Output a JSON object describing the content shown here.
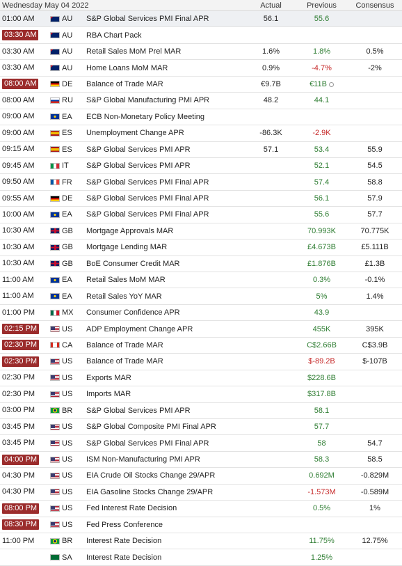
{
  "header": {
    "date": "Wednesday May 04 2022",
    "actual": "Actual",
    "previous": "Previous",
    "consensus": "Consensus"
  },
  "colors": {
    "highlight_time": "#9b2c2c",
    "positive": "#2e7d32",
    "negative": "#c62828"
  },
  "rows": [
    {
      "time": "01:00 AM",
      "hl": false,
      "flag": "australia-flag-icon",
      "ctry": "AU",
      "event": "S&P Global Services PMI Final APR",
      "actual": "56.1",
      "previous": "55.6",
      "prev_dir": "up",
      "consensus": ""
    },
    {
      "time": "03:30 AM",
      "hl": true,
      "flag": "australia-flag-icon",
      "ctry": "AU",
      "event": "RBA Chart Pack",
      "actual": "",
      "previous": "",
      "prev_dir": "",
      "consensus": ""
    },
    {
      "time": "03:30 AM",
      "hl": false,
      "flag": "australia-flag-icon",
      "ctry": "AU",
      "event": "Retail Sales MoM Prel MAR",
      "actual": "1.6%",
      "previous": "1.8%",
      "prev_dir": "up",
      "consensus": "0.5%"
    },
    {
      "time": "03:30 AM",
      "hl": false,
      "flag": "australia-flag-icon",
      "ctry": "AU",
      "event": "Home Loans MoM MAR",
      "actual": "0.9%",
      "previous": "-4.7%",
      "prev_dir": "down",
      "consensus": "-2%"
    },
    {
      "time": "08:00 AM",
      "hl": true,
      "flag": "germany-flag-icon",
      "ctry": "DE",
      "event": "Balance of Trade MAR",
      "actual": "€9.7B",
      "previous": "€11B",
      "prev_dir": "up",
      "revised": true,
      "consensus": ""
    },
    {
      "time": "08:00 AM",
      "hl": false,
      "flag": "russia-flag-icon",
      "ctry": "RU",
      "event": "S&P Global Manufacturing PMI APR",
      "actual": "48.2",
      "previous": "44.1",
      "prev_dir": "up",
      "consensus": ""
    },
    {
      "time": "09:00 AM",
      "hl": false,
      "flag": "euro-area-flag-icon",
      "ctry": "EA",
      "event": "ECB Non-Monetary Policy Meeting",
      "actual": "",
      "previous": "",
      "prev_dir": "",
      "consensus": ""
    },
    {
      "time": "09:00 AM",
      "hl": false,
      "flag": "spain-flag-icon",
      "ctry": "ES",
      "event": "Unemployment Change APR",
      "actual": "-86.3K",
      "previous": "-2.9K",
      "prev_dir": "down",
      "consensus": ""
    },
    {
      "time": "09:15 AM",
      "hl": false,
      "flag": "spain-flag-icon",
      "ctry": "ES",
      "event": "S&P Global Services PMI APR",
      "actual": "57.1",
      "previous": "53.4",
      "prev_dir": "up",
      "consensus": "55.9"
    },
    {
      "time": "09:45 AM",
      "hl": false,
      "flag": "italy-flag-icon",
      "ctry": "IT",
      "event": "S&P Global Services PMI APR",
      "actual": "",
      "previous": "52.1",
      "prev_dir": "up",
      "consensus": "54.5"
    },
    {
      "time": "09:50 AM",
      "hl": false,
      "flag": "france-flag-icon",
      "ctry": "FR",
      "event": "S&P Global Services PMI Final APR",
      "actual": "",
      "previous": "57.4",
      "prev_dir": "up",
      "consensus": "58.8"
    },
    {
      "time": "09:55 AM",
      "hl": false,
      "flag": "germany-flag-icon",
      "ctry": "DE",
      "event": "S&P Global Services PMI Final APR",
      "actual": "",
      "previous": "56.1",
      "prev_dir": "up",
      "consensus": "57.9"
    },
    {
      "time": "10:00 AM",
      "hl": false,
      "flag": "euro-area-flag-icon",
      "ctry": "EA",
      "event": "S&P Global Services PMI Final APR",
      "actual": "",
      "previous": "55.6",
      "prev_dir": "up",
      "consensus": "57.7"
    },
    {
      "time": "10:30 AM",
      "hl": false,
      "flag": "uk-flag-icon",
      "ctry": "GB",
      "event": "Mortgage Approvals MAR",
      "actual": "",
      "previous": "70.993K",
      "prev_dir": "up",
      "consensus": "70.775K"
    },
    {
      "time": "10:30 AM",
      "hl": false,
      "flag": "uk-flag-icon",
      "ctry": "GB",
      "event": "Mortgage Lending MAR",
      "actual": "",
      "previous": "£4.673B",
      "prev_dir": "up",
      "consensus": "£5.111B"
    },
    {
      "time": "10:30 AM",
      "hl": false,
      "flag": "uk-flag-icon",
      "ctry": "GB",
      "event": "BoE Consumer Credit MAR",
      "actual": "",
      "previous": "£1.876B",
      "prev_dir": "up",
      "consensus": "£1.3B"
    },
    {
      "time": "11:00 AM",
      "hl": false,
      "flag": "euro-area-flag-icon",
      "ctry": "EA",
      "event": "Retail Sales MoM MAR",
      "actual": "",
      "previous": "0.3%",
      "prev_dir": "up",
      "consensus": "-0.1%"
    },
    {
      "time": "11:00 AM",
      "hl": false,
      "flag": "euro-area-flag-icon",
      "ctry": "EA",
      "event": "Retail Sales YoY MAR",
      "actual": "",
      "previous": "5%",
      "prev_dir": "up",
      "consensus": "1.4%"
    },
    {
      "time": "01:00 PM",
      "hl": false,
      "flag": "mexico-flag-icon",
      "ctry": "MX",
      "event": "Consumer Confidence APR",
      "actual": "",
      "previous": "43.9",
      "prev_dir": "up",
      "consensus": ""
    },
    {
      "time": "02:15 PM",
      "hl": true,
      "flag": "usa-flag-icon",
      "ctry": "US",
      "event": "ADP Employment Change APR",
      "actual": "",
      "previous": "455K",
      "prev_dir": "up",
      "consensus": "395K"
    },
    {
      "time": "02:30 PM",
      "hl": true,
      "flag": "canada-flag-icon",
      "ctry": "CA",
      "event": "Balance of Trade MAR",
      "actual": "",
      "previous": "C$2.66B",
      "prev_dir": "up",
      "consensus": "C$3.9B"
    },
    {
      "time": "02:30 PM",
      "hl": true,
      "flag": "usa-flag-icon",
      "ctry": "US",
      "event": "Balance of Trade MAR",
      "actual": "",
      "previous": "$-89.2B",
      "prev_dir": "down",
      "consensus": "$-107B"
    },
    {
      "time": "02:30 PM",
      "hl": false,
      "flag": "usa-flag-icon",
      "ctry": "US",
      "event": "Exports MAR",
      "actual": "",
      "previous": "$228.6B",
      "prev_dir": "up",
      "consensus": ""
    },
    {
      "time": "02:30 PM",
      "hl": false,
      "flag": "usa-flag-icon",
      "ctry": "US",
      "event": "Imports MAR",
      "actual": "",
      "previous": "$317.8B",
      "prev_dir": "up",
      "consensus": ""
    },
    {
      "time": "03:00 PM",
      "hl": false,
      "flag": "brazil-flag-icon",
      "ctry": "BR",
      "event": "S&P Global Services PMI APR",
      "actual": "",
      "previous": "58.1",
      "prev_dir": "up",
      "consensus": ""
    },
    {
      "time": "03:45 PM",
      "hl": false,
      "flag": "usa-flag-icon",
      "ctry": "US",
      "event": "S&P Global Composite PMI Final APR",
      "actual": "",
      "previous": "57.7",
      "prev_dir": "up",
      "consensus": ""
    },
    {
      "time": "03:45 PM",
      "hl": false,
      "flag": "usa-flag-icon",
      "ctry": "US",
      "event": "S&P Global Services PMI Final APR",
      "actual": "",
      "previous": "58",
      "prev_dir": "up",
      "consensus": "54.7"
    },
    {
      "time": "04:00 PM",
      "hl": true,
      "flag": "usa-flag-icon",
      "ctry": "US",
      "event": "ISM Non-Manufacturing PMI APR",
      "actual": "",
      "previous": "58.3",
      "prev_dir": "up",
      "consensus": "58.5"
    },
    {
      "time": "04:30 PM",
      "hl": false,
      "flag": "usa-flag-icon",
      "ctry": "US",
      "event": "EIA Crude Oil Stocks Change 29/APR",
      "actual": "",
      "previous": "0.692M",
      "prev_dir": "up",
      "consensus": "-0.829M"
    },
    {
      "time": "04:30 PM",
      "hl": false,
      "flag": "usa-flag-icon",
      "ctry": "US",
      "event": "EIA Gasoline Stocks Change 29/APR",
      "actual": "",
      "previous": "-1.573M",
      "prev_dir": "down",
      "consensus": "-0.589M"
    },
    {
      "time": "08:00 PM",
      "hl": true,
      "flag": "usa-flag-icon",
      "ctry": "US",
      "event": "Fed Interest Rate Decision",
      "actual": "",
      "previous": "0.5%",
      "prev_dir": "up",
      "consensus": "1%"
    },
    {
      "time": "08:30 PM",
      "hl": true,
      "flag": "usa-flag-icon",
      "ctry": "US",
      "event": "Fed Press Conference",
      "actual": "",
      "previous": "",
      "prev_dir": "",
      "consensus": ""
    },
    {
      "time": "11:00 PM",
      "hl": false,
      "flag": "brazil-flag-icon",
      "ctry": "BR",
      "event": "Interest Rate Decision",
      "actual": "",
      "previous": "11.75%",
      "prev_dir": "up",
      "consensus": "12.75%"
    },
    {
      "time": "",
      "hl": false,
      "flag": "saudi-arabia-flag-icon",
      "ctry": "SA",
      "event": "Interest Rate Decision",
      "actual": "",
      "previous": "1.25%",
      "prev_dir": "up",
      "consensus": ""
    }
  ]
}
